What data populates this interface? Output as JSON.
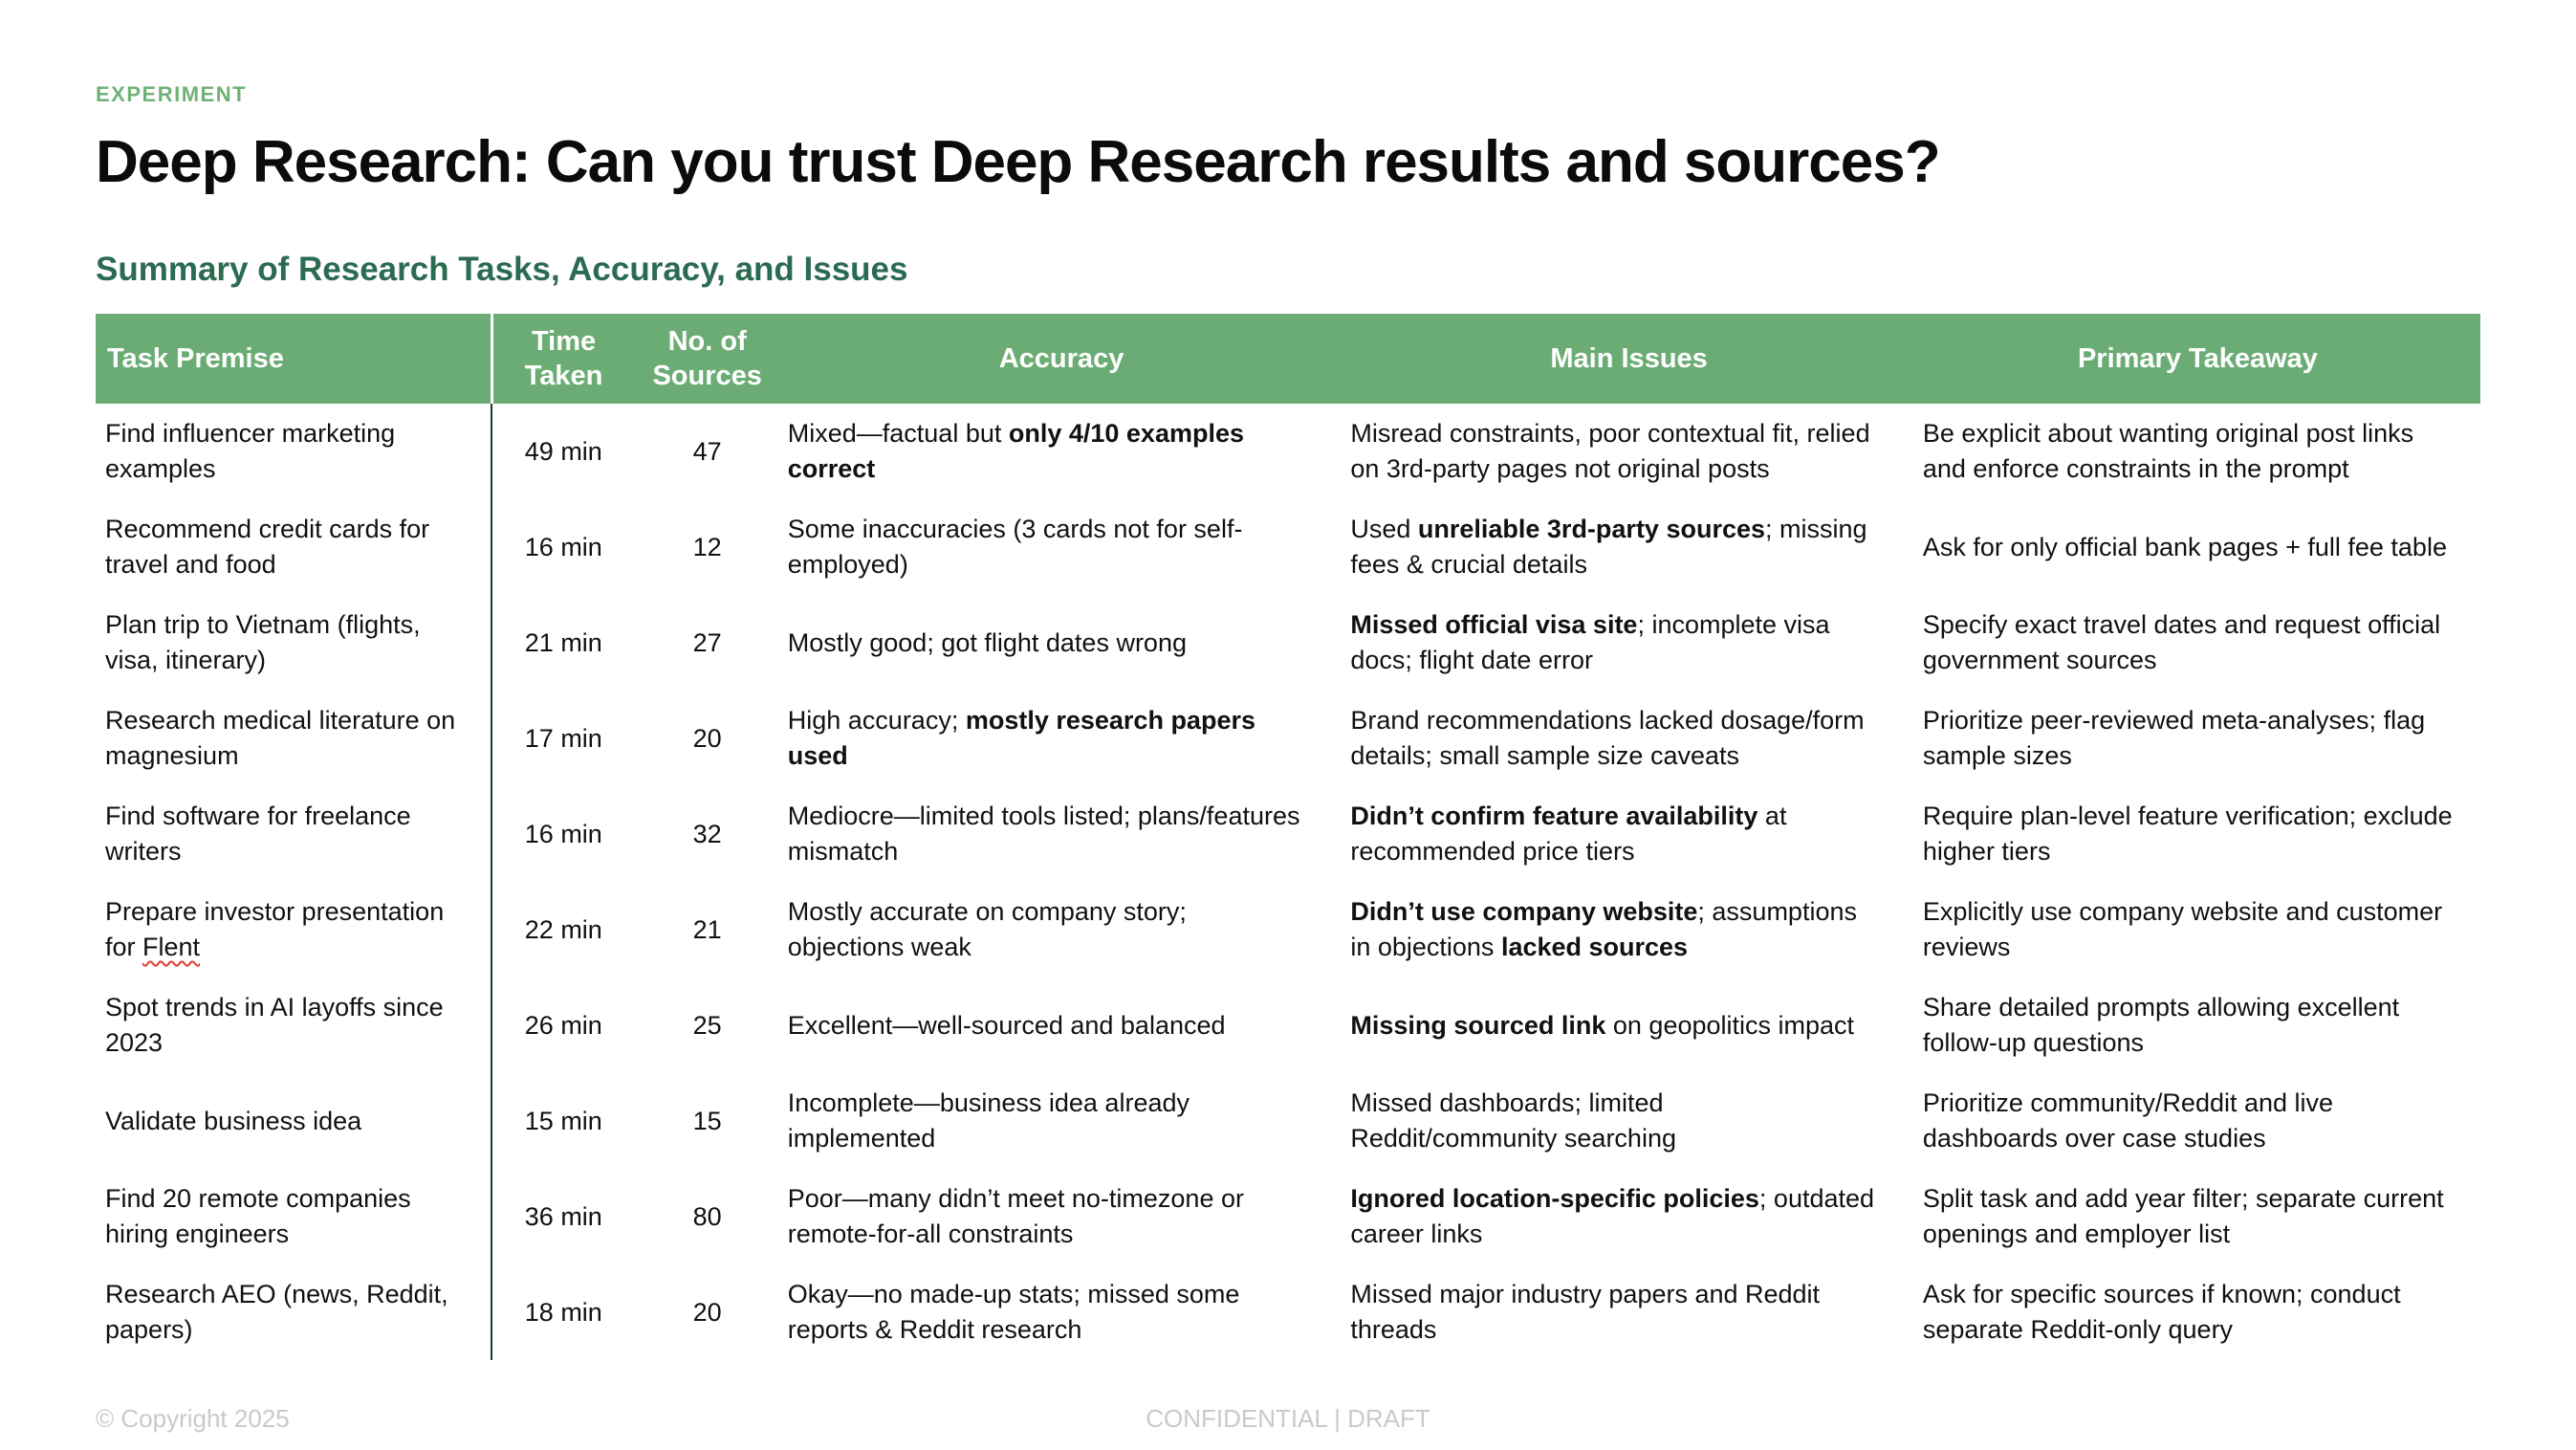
{
  "slide": {
    "eyebrow": "EXPERIMENT",
    "title": "Deep Research: Can you trust Deep Research results and sources?",
    "subtitle": "Summary of Research Tasks, Accuracy, and Issues",
    "footer": {
      "copyright": "© Copyright 2025",
      "status": "CONFIDENTIAL | DRAFT"
    }
  },
  "colors": {
    "accent_green": "#6BAC74",
    "eyebrow_green": "#6FB277",
    "heading_green": "#2B6B51",
    "divider_dark": "#1F3D2C",
    "footer_gray": "#C7CBC9"
  },
  "table": {
    "columns": [
      "Task Premise",
      "Time Taken",
      "No. of Sources",
      "Accuracy",
      "Main Issues",
      "Primary Takeaway"
    ],
    "rows": [
      {
        "task": [
          {
            "t": "Find influencer marketing examples"
          }
        ],
        "time": "49 min",
        "sources": "47",
        "accuracy": [
          {
            "t": "Mixed—factual but "
          },
          {
            "t": "only 4/10 examples correct",
            "b": true
          }
        ],
        "issues": [
          {
            "t": "Misread constraints, poor contextual fit, relied on 3rd-party pages not original posts"
          }
        ],
        "takeaway": [
          {
            "t": "Be explicit about wanting original post links and enforce constraints in the prompt"
          }
        ]
      },
      {
        "task": [
          {
            "t": "Recommend credit cards for travel and food"
          }
        ],
        "time": "16 min",
        "sources": "12",
        "accuracy": [
          {
            "t": "Some inaccuracies (3 cards not for self-employed)"
          }
        ],
        "issues": [
          {
            "t": "Used "
          },
          {
            "t": "unreliable 3rd-party sources",
            "b": true
          },
          {
            "t": "; missing fees & crucial details"
          }
        ],
        "takeaway": [
          {
            "t": "Ask for only official bank pages + full fee table"
          }
        ]
      },
      {
        "task": [
          {
            "t": "Plan trip to Vietnam (flights, visa, itinerary)"
          }
        ],
        "time": "21 min",
        "sources": "27",
        "accuracy": [
          {
            "t": "Mostly good; got flight dates wrong"
          }
        ],
        "issues": [
          {
            "t": "Missed official visa site",
            "b": true
          },
          {
            "t": "; incomplete visa docs; flight date error"
          }
        ],
        "takeaway": [
          {
            "t": "Specify exact travel dates and request official government sources"
          }
        ]
      },
      {
        "task": [
          {
            "t": "Research medical literature on magnesium"
          }
        ],
        "time": "17 min",
        "sources": "20",
        "accuracy": [
          {
            "t": "High accuracy; "
          },
          {
            "t": "mostly research papers used",
            "b": true
          }
        ],
        "issues": [
          {
            "t": "Brand recommendations lacked dosage/form details; small sample size caveats"
          }
        ],
        "takeaway": [
          {
            "t": "Prioritize peer-reviewed meta-analyses; flag sample sizes"
          }
        ]
      },
      {
        "task": [
          {
            "t": "Find software for freelance writers"
          }
        ],
        "time": "16 min",
        "sources": "32",
        "accuracy": [
          {
            "t": "Mediocre—limited tools listed; plans/features mismatch"
          }
        ],
        "issues": [
          {
            "t": "Didn’t confirm feature availability",
            "b": true
          },
          {
            "t": " at recommended price tiers"
          }
        ],
        "takeaway": [
          {
            "t": "Require plan-level feature verification; exclude higher tiers"
          }
        ]
      },
      {
        "task": [
          {
            "t": "Prepare investor presentation for "
          },
          {
            "t": "Flent",
            "spell": true
          }
        ],
        "time": "22 min",
        "sources": "21",
        "accuracy": [
          {
            "t": "Mostly accurate on company story; objections weak"
          }
        ],
        "issues": [
          {
            "t": "Didn’t use company website",
            "b": true
          },
          {
            "t": "; assumptions in objections "
          },
          {
            "t": "lacked sources",
            "b": true
          }
        ],
        "takeaway": [
          {
            "t": "Explicitly use company website and customer reviews"
          }
        ]
      },
      {
        "task": [
          {
            "t": "Spot trends in AI layoffs since 2023"
          }
        ],
        "time": "26 min",
        "sources": "25",
        "accuracy": [
          {
            "t": "Excellent—well-sourced and balanced"
          }
        ],
        "issues": [
          {
            "t": "Missing sourced link",
            "b": true
          },
          {
            "t": " on geopolitics impact"
          }
        ],
        "takeaway": [
          {
            "t": "Share detailed prompts allowing excellent follow-up questions"
          }
        ]
      },
      {
        "task": [
          {
            "t": "Validate business idea"
          }
        ],
        "time": "15 min",
        "sources": "15",
        "accuracy": [
          {
            "t": "Incomplete—business idea already implemented"
          }
        ],
        "issues": [
          {
            "t": "Missed dashboards; limited Reddit/community searching"
          }
        ],
        "takeaway": [
          {
            "t": "Prioritize community/Reddit and live dashboards over case studies"
          }
        ]
      },
      {
        "task": [
          {
            "t": "Find 20 remote companies hiring engineers"
          }
        ],
        "time": "36 min",
        "sources": "80",
        "accuracy": [
          {
            "t": "Poor—many didn’t meet no-timezone or remote-for-all constraints"
          }
        ],
        "issues": [
          {
            "t": "Ignored location-specific policies",
            "b": true
          },
          {
            "t": "; outdated career links"
          }
        ],
        "takeaway": [
          {
            "t": "Split task and add year filter; separate current openings and employer list"
          }
        ]
      },
      {
        "task": [
          {
            "t": "Research AEO (news, Reddit, papers)"
          }
        ],
        "time": "18 min",
        "sources": "20",
        "accuracy": [
          {
            "t": "Okay—no made-up stats; missed some reports & Reddit research"
          }
        ],
        "issues": [
          {
            "t": "Missed major industry papers and Reddit threads"
          }
        ],
        "takeaway": [
          {
            "t": "Ask for specific sources if known; conduct separate Reddit-only query"
          }
        ]
      }
    ]
  }
}
